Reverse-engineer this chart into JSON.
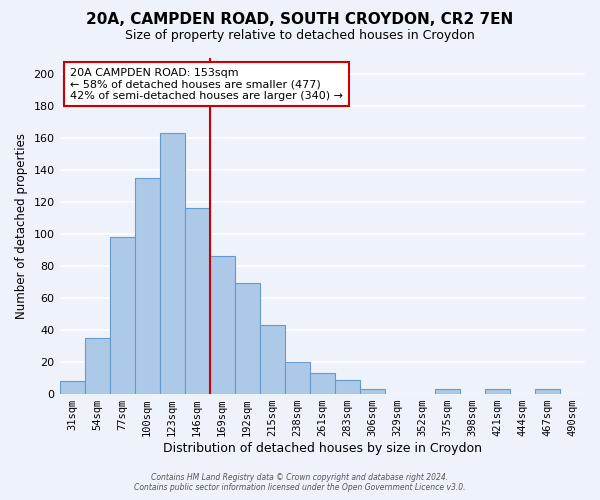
{
  "title": "20A, CAMPDEN ROAD, SOUTH CROYDON, CR2 7EN",
  "subtitle": "Size of property relative to detached houses in Croydon",
  "xlabel": "Distribution of detached houses by size in Croydon",
  "ylabel": "Number of detached properties",
  "bin_labels": [
    "31sqm",
    "54sqm",
    "77sqm",
    "100sqm",
    "123sqm",
    "146sqm",
    "169sqm",
    "192sqm",
    "215sqm",
    "238sqm",
    "261sqm",
    "283sqm",
    "306sqm",
    "329sqm",
    "352sqm",
    "375sqm",
    "398sqm",
    "421sqm",
    "444sqm",
    "467sqm",
    "490sqm"
  ],
  "bar_values": [
    8,
    35,
    98,
    135,
    163,
    116,
    86,
    69,
    43,
    20,
    13,
    9,
    3,
    0,
    0,
    3,
    0,
    3,
    0,
    3,
    0
  ],
  "bar_color": "#adc9e8",
  "bar_edge_color": "#6699cc",
  "vline_color": "#cc0000",
  "vline_x_index": 5,
  "ylim": [
    0,
    210
  ],
  "yticks": [
    0,
    20,
    40,
    60,
    80,
    100,
    120,
    140,
    160,
    180,
    200
  ],
  "annotation_title": "20A CAMPDEN ROAD: 153sqm",
  "annotation_line1": "← 58% of detached houses are smaller (477)",
  "annotation_line2": "42% of semi-detached houses are larger (340) →",
  "annotation_box_color": "#ffffff",
  "annotation_box_edge": "#cc0000",
  "footer1": "Contains HM Land Registry data © Crown copyright and database right 2024.",
  "footer2": "Contains public sector information licensed under the Open Government Licence v3.0.",
  "bg_color": "#eef2fa",
  "grid_color": "#ffffff"
}
